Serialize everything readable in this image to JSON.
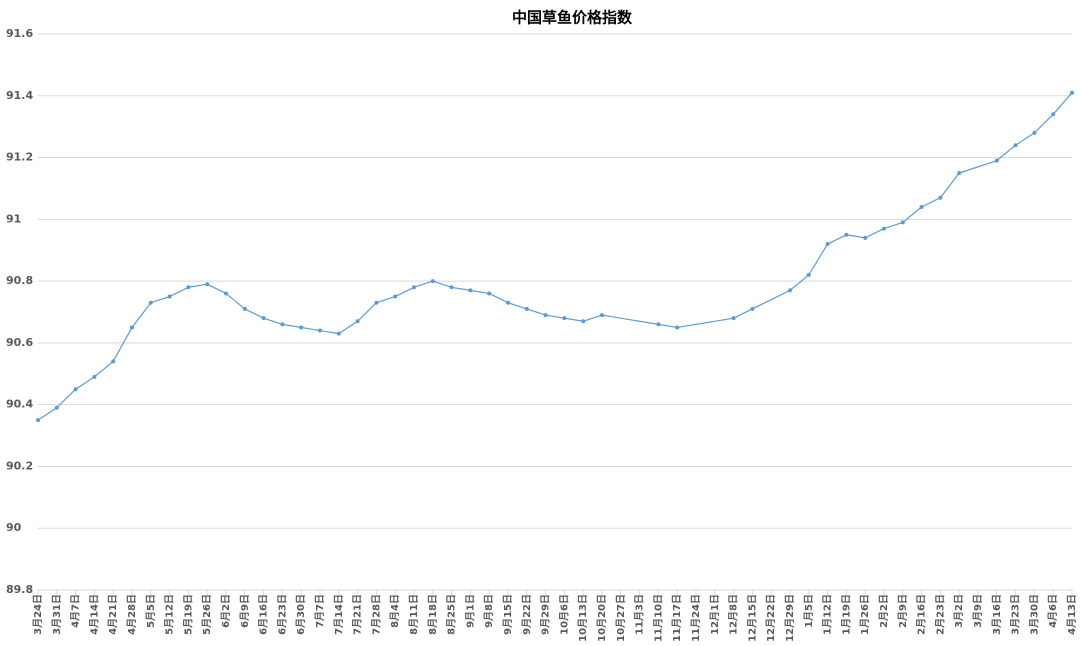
{
  "chart_data": {
    "type": "line",
    "title": "中国草鱼价格指数",
    "categories": [
      "3月24日",
      "3月31日",
      "4月7日",
      "4月14日",
      "4月21日",
      "4月28日",
      "5月5日",
      "5月12日",
      "5月19日",
      "5月26日",
      "6月2日",
      "6月9日",
      "6月16日",
      "6月23日",
      "6月30日",
      "7月7日",
      "7月14日",
      "7月21日",
      "7月28日",
      "8月4日",
      "8月11日",
      "8月18日",
      "8月25日",
      "9月1日",
      "9月8日",
      "9月15日",
      "9月22日",
      "9月29日",
      "10月6日",
      "10月13日",
      "10月20日",
      "10月27日",
      "11月3日",
      "11月10日",
      "11月17日",
      "11月24日",
      "12月1日",
      "12月8日",
      "12月15日",
      "12月22日",
      "12月29日",
      "1月5日",
      "1月12日",
      "1月19日",
      "1月26日",
      "2月2日",
      "2月9日",
      "2月16日",
      "2月23日",
      "3月2日",
      "3月9日",
      "3月16日",
      "3月23日",
      "3月30日",
      "4月6日",
      "4月13日"
    ],
    "series": [
      {
        "name": "中国草鱼价格指数",
        "color": "#5b9bd5",
        "values": [
          90.35,
          90.39,
          90.45,
          90.49,
          90.54,
          90.65,
          90.73,
          90.75,
          90.78,
          90.79,
          90.76,
          90.71,
          90.68,
          90.66,
          90.65,
          90.64,
          90.63,
          90.67,
          90.73,
          90.75,
          90.78,
          90.8,
          90.78,
          90.77,
          90.76,
          90.73,
          90.71,
          90.69,
          90.68,
          90.67,
          90.69,
          null,
          null,
          90.66,
          90.65,
          null,
          null,
          90.68,
          90.71,
          null,
          90.77,
          90.82,
          90.92,
          90.95,
          90.94,
          90.97,
          90.99,
          91.04,
          91.07,
          91.15,
          null,
          91.19,
          91.24,
          91.28,
          91.34,
          91.41
        ]
      }
    ],
    "ylim": [
      89.8,
      91.6
    ],
    "yticks": [
      89.8,
      90,
      90.2,
      90.4,
      90.6,
      90.8,
      91,
      91.2,
      91.4,
      91.6
    ],
    "grid": true
  }
}
